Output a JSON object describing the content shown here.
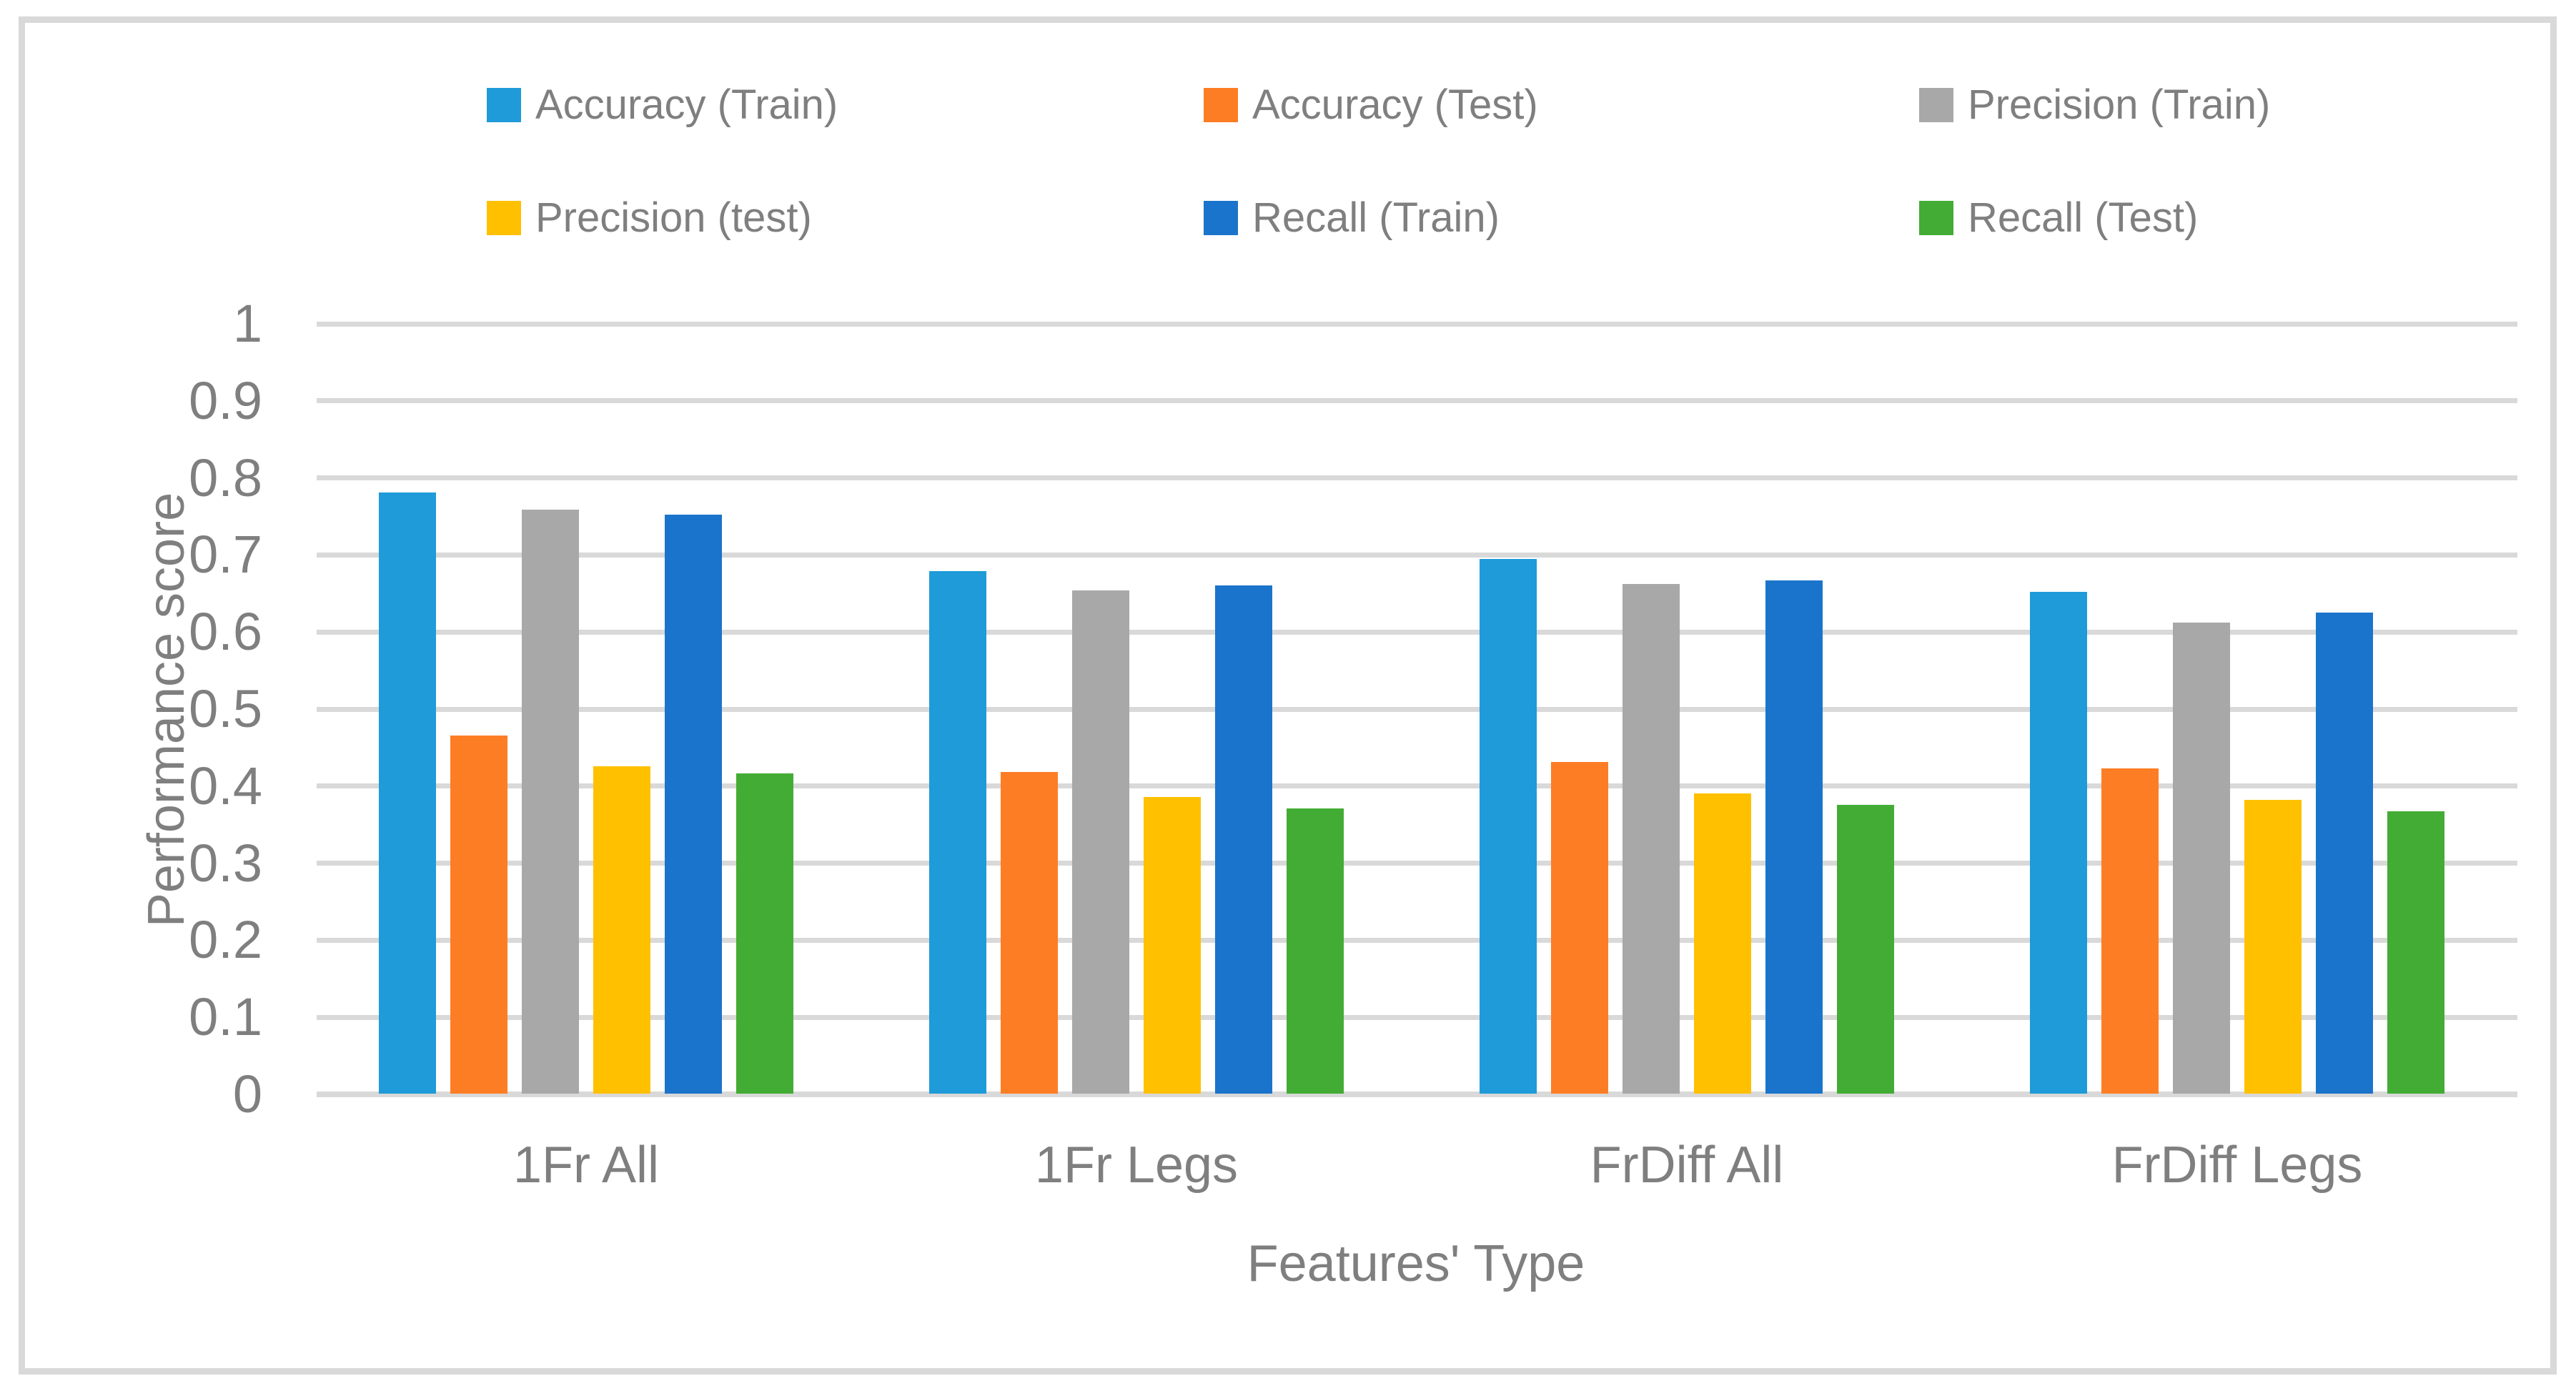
{
  "chart_data": {
    "type": "bar",
    "title": "",
    "categories": [
      "1Fr All",
      "1Fr Legs",
      "FrDiff All",
      "FrDiff Legs"
    ],
    "series": [
      {
        "name": "Accuracy (Train)",
        "color": "#1E9BD8",
        "values": [
          0.78,
          0.678,
          0.694,
          0.651
        ]
      },
      {
        "name": "Accuracy (Test)",
        "color": "#FD7D25",
        "values": [
          0.465,
          0.417,
          0.43,
          0.422
        ]
      },
      {
        "name": "Precision (Train)",
        "color": "#A8A8A8",
        "values": [
          0.758,
          0.653,
          0.661,
          0.611
        ]
      },
      {
        "name": "Precision (test)",
        "color": "#FFC000",
        "values": [
          0.425,
          0.385,
          0.39,
          0.381
        ]
      },
      {
        "name": "Recall (Train)",
        "color": "#1B74CB",
        "values": [
          0.751,
          0.66,
          0.666,
          0.624
        ]
      },
      {
        "name": "Recall (Test)",
        "color": "#43AC34",
        "values": [
          0.416,
          0.37,
          0.375,
          0.366
        ]
      }
    ],
    "xlabel": "Features' Type",
    "ylabel": "Performance score",
    "ylim": [
      0,
      1
    ],
    "ytick_step": 0.1,
    "ytick_labels": [
      "0",
      "0.1",
      "0.2",
      "0.3",
      "0.4",
      "0.5",
      "0.6",
      "0.7",
      "0.8",
      "0.9",
      "1"
    ],
    "grid": true,
    "legend_position": "top",
    "legend_rows": [
      [
        "Accuracy (Train)",
        "Accuracy (Test)",
        "Precision (Train)"
      ],
      [
        "Precision (test)",
        "Recall (Train)",
        "Recall (Test)"
      ]
    ],
    "colors": {
      "text": "#7F7F7F",
      "gridline": "#D9D9D9",
      "frame_border": "#D9D9D9",
      "background": "#FFFFFF"
    }
  }
}
